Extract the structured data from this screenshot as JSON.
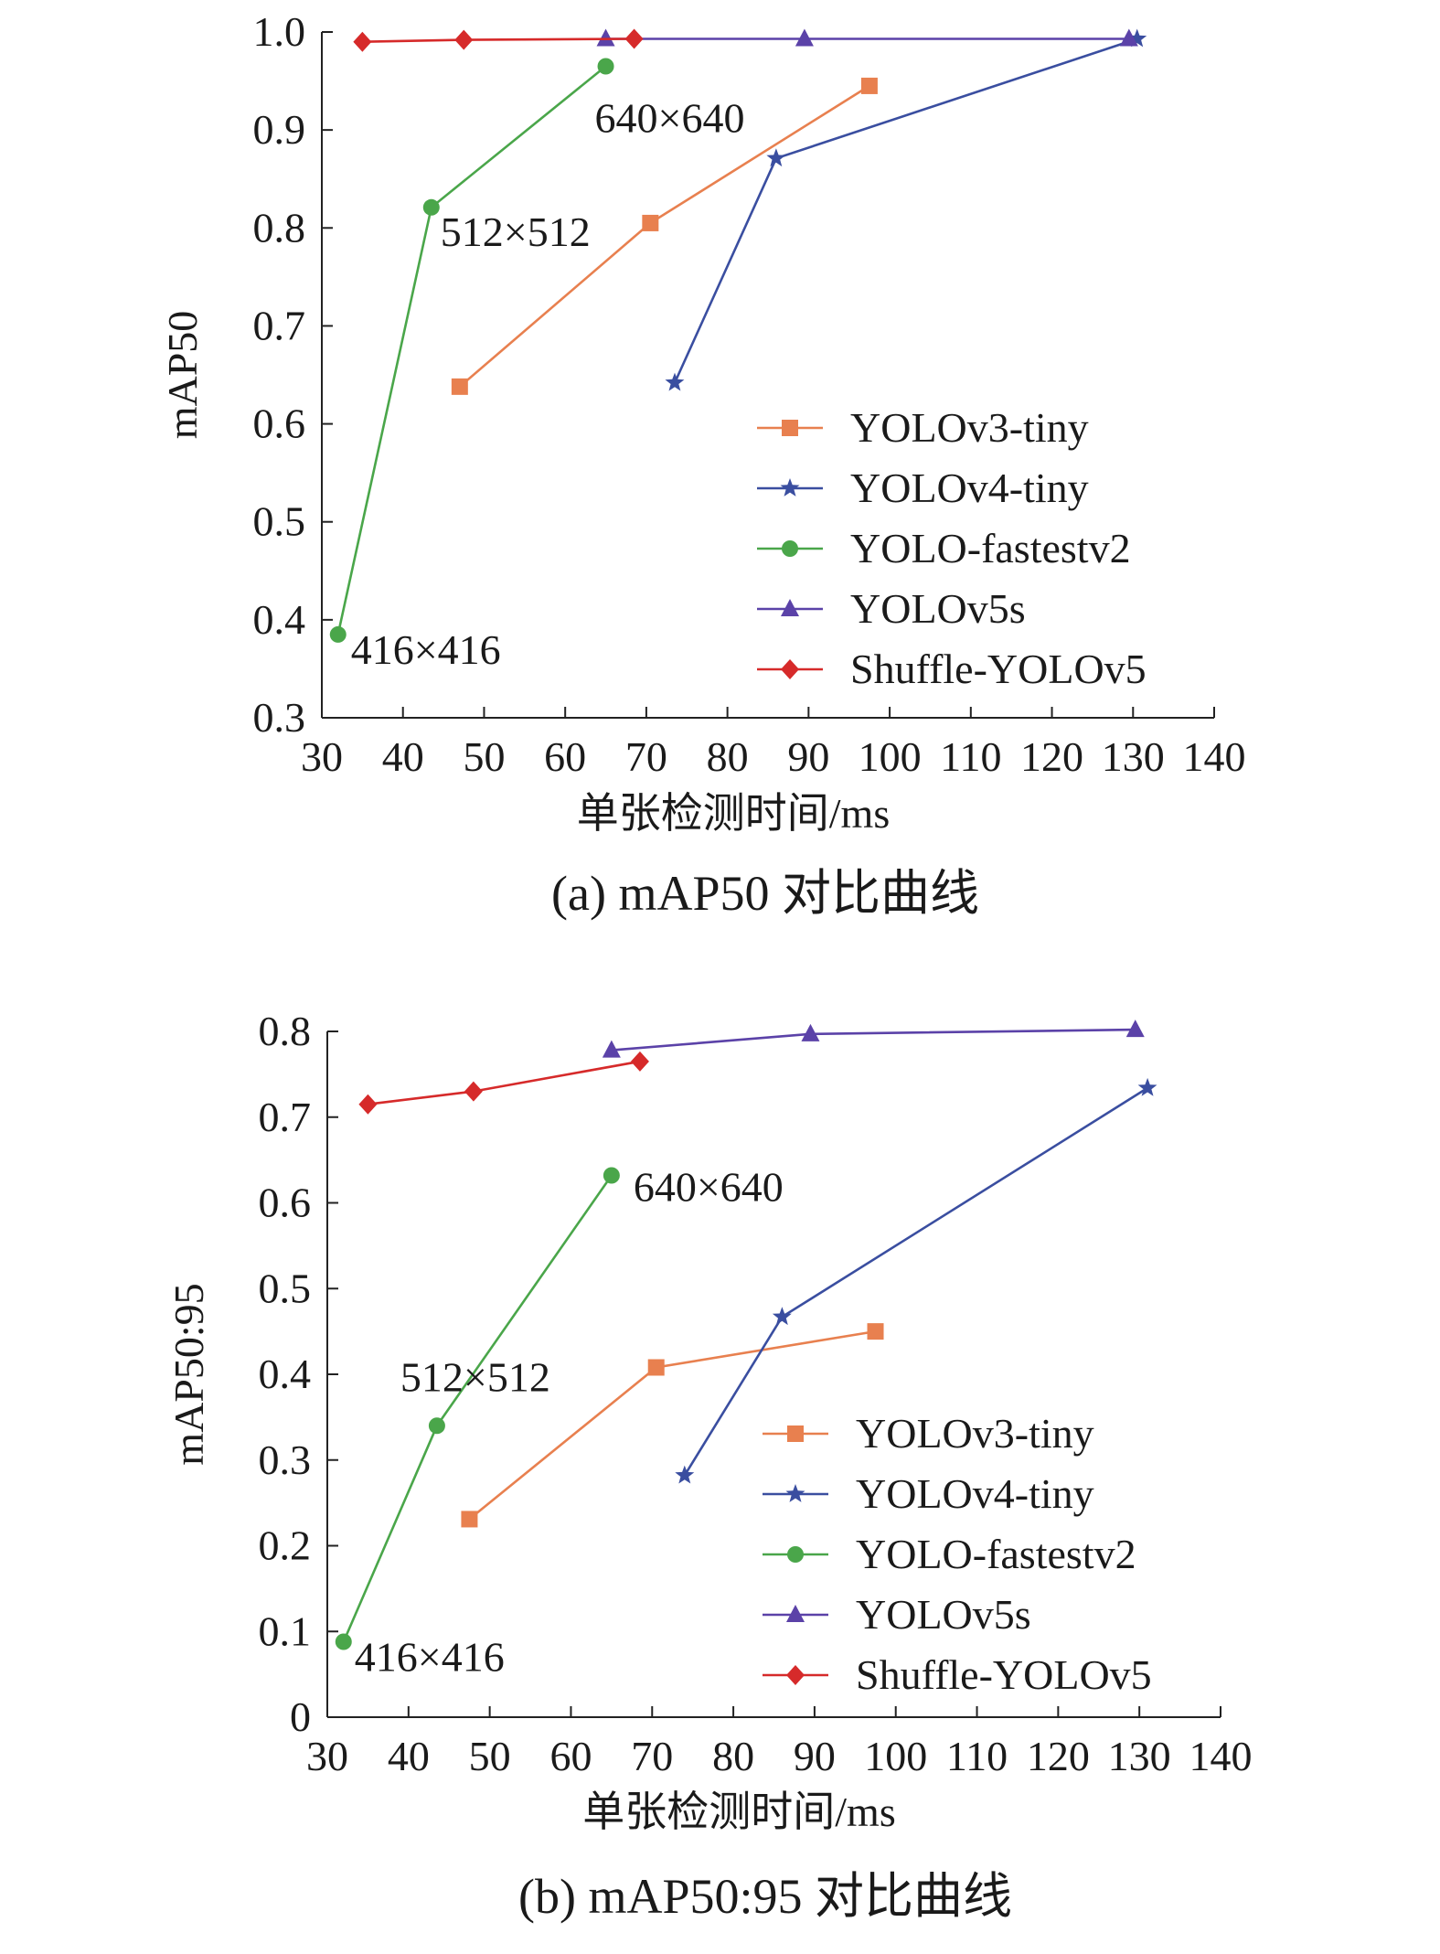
{
  "chart_data": [
    {
      "type": "line",
      "caption": "(a) mAP50 对比曲线",
      "xlabel": "单张检测时间/ms",
      "ylabel": "mAP50",
      "xlim": [
        30,
        140
      ],
      "ylim": [
        0.3,
        1.0
      ],
      "xticks": [
        "30",
        "40",
        "50",
        "60",
        "70",
        "80",
        "90",
        "100",
        "110",
        "120",
        "130",
        "140"
      ],
      "yticks": [
        "0.3",
        "0.4",
        "0.5",
        "0.6",
        "0.7",
        "0.8",
        "0.9",
        "1.0"
      ],
      "legend_position": "bottom-right",
      "series": [
        {
          "name": "YOLOv3-tiny",
          "color": "#e8804f",
          "marker": "square",
          "x": [
            47.0,
            70.5,
            97.5
          ],
          "y": [
            0.638,
            0.805,
            0.945
          ]
        },
        {
          "name": "YOLOv4-tiny",
          "color": "#3a4ea0",
          "marker": "star",
          "x": [
            73.5,
            86.0,
            130.5
          ],
          "y": [
            0.642,
            0.871,
            0.993
          ]
        },
        {
          "name": "YOLO-fastestv2",
          "color": "#4aa64a",
          "marker": "circle",
          "x": [
            32.0,
            43.5,
            65.0
          ],
          "y": [
            0.385,
            0.821,
            0.965
          ]
        },
        {
          "name": "YOLOv5s",
          "color": "#5b42a8",
          "marker": "triangle",
          "x": [
            65.0,
            89.5,
            129.5
          ],
          "y": [
            0.993,
            0.993,
            0.993
          ]
        },
        {
          "name": "Shuffle-YOLOv5",
          "color": "#d62a2a",
          "marker": "diamond",
          "x": [
            35.0,
            47.5,
            68.5
          ],
          "y": [
            0.99,
            0.992,
            0.993
          ]
        }
      ],
      "annotations": [
        {
          "text": "640×640",
          "x": 65.0,
          "y": 0.965
        },
        {
          "text": "512×512",
          "x": 43.5,
          "y": 0.821
        },
        {
          "text": "416×416",
          "x": 32.0,
          "y": 0.385
        }
      ]
    },
    {
      "type": "line",
      "caption": "(b) mAP50:95 对比曲线",
      "xlabel": "单张检测时间/ms",
      "ylabel": "mAP50:95",
      "xlim": [
        30,
        140
      ],
      "ylim": [
        0,
        0.8
      ],
      "xticks": [
        "30",
        "40",
        "50",
        "60",
        "70",
        "80",
        "90",
        "100",
        "110",
        "120",
        "130",
        "140"
      ],
      "yticks": [
        "0",
        "0.1",
        "0.2",
        "0.3",
        "0.4",
        "0.5",
        "0.6",
        "0.7",
        "0.8"
      ],
      "legend_position": "bottom-right",
      "series": [
        {
          "name": "YOLOv3-tiny",
          "color": "#e8804f",
          "marker": "square",
          "x": [
            47.5,
            70.5,
            97.5
          ],
          "y": [
            0.231,
            0.408,
            0.45
          ]
        },
        {
          "name": "YOLOv4-tiny",
          "color": "#3a4ea0",
          "marker": "star",
          "x": [
            74.0,
            86.0,
            131.0
          ],
          "y": [
            0.282,
            0.467,
            0.734
          ]
        },
        {
          "name": "YOLO-fastestv2",
          "color": "#4aa64a",
          "marker": "circle",
          "x": [
            32.0,
            43.5,
            65.0
          ],
          "y": [
            0.088,
            0.34,
            0.632
          ]
        },
        {
          "name": "YOLOv5s",
          "color": "#5b42a8",
          "marker": "triangle",
          "x": [
            65.0,
            89.5,
            129.5
          ],
          "y": [
            0.778,
            0.797,
            0.802
          ]
        },
        {
          "name": "Shuffle-YOLOv5",
          "color": "#d62a2a",
          "marker": "diamond",
          "x": [
            35.0,
            48.0,
            68.5
          ],
          "y": [
            0.715,
            0.73,
            0.765
          ]
        }
      ],
      "annotations": [
        {
          "text": "640×640",
          "x": 65.0,
          "y": 0.632
        },
        {
          "text": "512×512",
          "x": 43.5,
          "y": 0.34
        },
        {
          "text": "416×416",
          "x": 32.0,
          "y": 0.088
        }
      ]
    }
  ]
}
